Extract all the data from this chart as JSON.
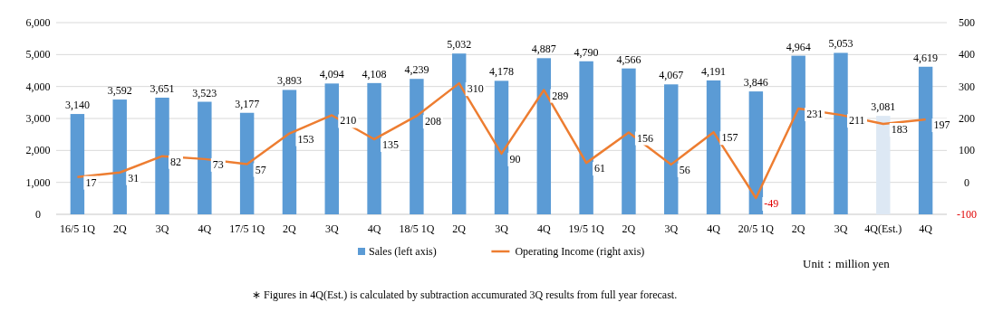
{
  "chart_data": {
    "type": "bar",
    "categories": [
      "16/5 1Q",
      "2Q",
      "3Q",
      "4Q",
      "17/5 1Q",
      "2Q",
      "3Q",
      "4Q",
      "18/5 1Q",
      "2Q",
      "3Q",
      "4Q",
      "19/5 1Q",
      "2Q",
      "3Q",
      "4Q",
      "20/5 1Q",
      "2Q",
      "3Q",
      "4Q(Est.)",
      "4Q"
    ],
    "series": [
      {
        "name": "Sales (left axis)",
        "color": "#5b9bd5",
        "colors": [
          "#5b9bd5",
          "#5b9bd5",
          "#5b9bd5",
          "#5b9bd5",
          "#5b9bd5",
          "#5b9bd5",
          "#5b9bd5",
          "#5b9bd5",
          "#5b9bd5",
          "#5b9bd5",
          "#5b9bd5",
          "#5b9bd5",
          "#5b9bd5",
          "#5b9bd5",
          "#5b9bd5",
          "#5b9bd5",
          "#5b9bd5",
          "#5b9bd5",
          "#5b9bd5",
          "#dde8f4",
          "#5b9bd5"
        ],
        "values": [
          3140,
          3592,
          3651,
          3523,
          3177,
          3893,
          4094,
          4108,
          4239,
          5032,
          4178,
          4887,
          4790,
          4566,
          4067,
          4191,
          3846,
          4964,
          5053,
          3081,
          4619
        ],
        "value_labels": [
          "3,140",
          "3,592",
          "3,651",
          "3,523",
          "3,177",
          "3,893",
          "4,094",
          "4,108",
          "4,239",
          "5,032",
          "4,178",
          "4,887",
          "4,790",
          "4,566",
          "4,067",
          "4,191",
          "3,846",
          "4,964",
          "5,053",
          "3,081",
          "4,619"
        ]
      },
      {
        "name": "Operating Income (right axis)",
        "type": "line",
        "axis": "y2",
        "color": "#ed7d31",
        "values": [
          17,
          31,
          82,
          73,
          57,
          153,
          210,
          135,
          208,
          310,
          90,
          289,
          61,
          156,
          56,
          157,
          -49,
          231,
          211,
          183,
          197
        ]
      }
    ],
    "ylim": [
      0,
      6000
    ],
    "yticks": [
      0,
      {
        "value": 1000,
        "label": "1,000"
      },
      {
        "value": 2000,
        "label": "2,000"
      },
      {
        "value": 3000,
        "label": "3,000"
      },
      {
        "value": 4000,
        "label": "4,000"
      },
      {
        "value": 5000,
        "label": "5,000"
      },
      {
        "value": 6000,
        "label": "6,000"
      }
    ],
    "y2lim": [
      -100,
      500
    ],
    "y2ticks": [
      -100,
      0,
      100,
      200,
      300,
      400,
      500
    ],
    "grid": "y",
    "legend": "bottom",
    "data_labels": true,
    "marker": "none",
    "annotations": [
      "Unit：million yen",
      "∗ Figures in 4Q(Est.) is calculated by subtraction accumurated 3Q results from full year forecast."
    ]
  }
}
